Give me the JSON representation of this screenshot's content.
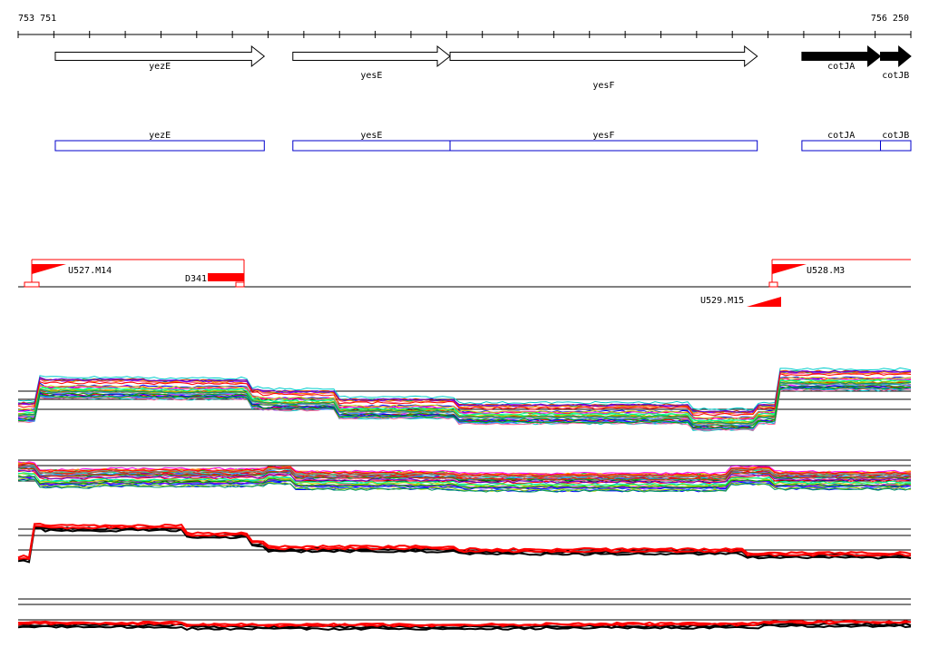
{
  "ruler": {
    "start_label": "753 751",
    "end_label": "756 250",
    "start": 753751,
    "end": 756250
  },
  "genes": [
    {
      "name": "yezE",
      "start": 753855,
      "end": 754440,
      "strand": "+",
      "filled": false
    },
    {
      "name": "yesE",
      "start": 754520,
      "end": 754960,
      "strand": "+",
      "filled": false
    },
    {
      "name": "yesF",
      "start": 754960,
      "end": 755820,
      "strand": "+",
      "filled": false
    },
    {
      "name": "cotJA",
      "start": 755945,
      "end": 756165,
      "strand": "+",
      "filled": true
    },
    {
      "name": "cotJB",
      "start": 756165,
      "end": 756250,
      "strand": "+",
      "filled": true
    }
  ],
  "features": [
    {
      "name": "U527.M14",
      "kind": "forward",
      "start": 753785,
      "end": 754385
    },
    {
      "name": "D341",
      "kind": "reverse-block",
      "start": 754275,
      "end": 754385
    },
    {
      "name": "U528.M3",
      "kind": "forward",
      "start": 755900,
      "end": 756250
    },
    {
      "name": "U529.M15",
      "kind": "reverse",
      "start": 755820,
      "end": 755900
    }
  ],
  "colors": {
    "gene_outline": "#000000",
    "gene_box": "#0000cc",
    "feature": "#ff0000",
    "axis": "#000000"
  }
}
